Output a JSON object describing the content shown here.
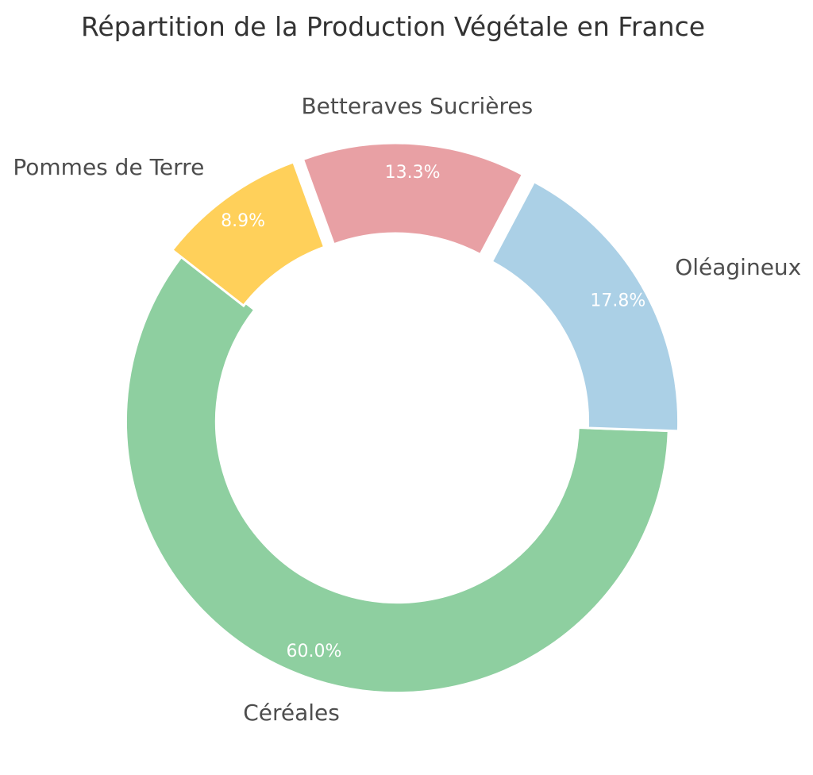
{
  "chart_data": {
    "type": "pie",
    "variant": "donut",
    "title": "Répartition de la Production Végétale en France",
    "categories": [
      "Céréales",
      "Oléagineux",
      "Betteraves Sucrières",
      "Pommes de Terre"
    ],
    "values": [
      60.0,
      17.8,
      13.3,
      8.9
    ],
    "percent_labels": [
      "60.0%",
      "17.8%",
      "13.3%",
      "8.9%"
    ],
    "colors": [
      "#8ecfa0",
      "#abd0e6",
      "#e8a0a4",
      "#ffd05a"
    ],
    "exploded": [
      "Céréales"
    ],
    "legend": "none",
    "label_text_color": "#4d4d4d",
    "percent_text_color": "#ffffff"
  }
}
